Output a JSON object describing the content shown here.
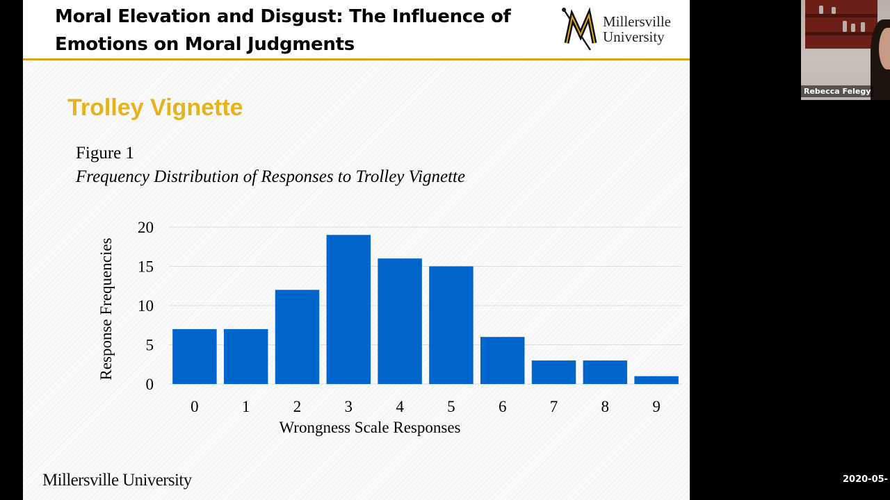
{
  "slide": {
    "title_line1": "Moral Elevation and Disgust: The Influence of",
    "title_line2": "Emotions on Moral Judgments",
    "logo_text_line1": "Millersville",
    "logo_text_line2": "University",
    "section_heading": "Trolley Vignette",
    "figure_label": "Figure 1",
    "figure_caption": "Frequency Distribution of Responses to Trolley Vignette",
    "footer_text": "Millersville University",
    "colors": {
      "header_rule": "#d9a520",
      "heading": "#e8b21c",
      "bar": "#0066cc"
    }
  },
  "chart_data": {
    "type": "bar",
    "categories": [
      "0",
      "1",
      "2",
      "3",
      "4",
      "5",
      "6",
      "7",
      "8",
      "9"
    ],
    "values": [
      7,
      7,
      12,
      19,
      16,
      15,
      6,
      3,
      3,
      1
    ],
    "xlabel": "Wrongness Scale Responses",
    "ylabel": "Response Frequencies",
    "ylim": [
      0,
      20
    ],
    "yticks": [
      "0",
      "5",
      "10",
      "15",
      "20"
    ],
    "grid": true,
    "bar_color": "#0066cc"
  },
  "participant": {
    "name": "Rebecca Felegy"
  },
  "recording": {
    "timestamp": "2020-05-"
  }
}
